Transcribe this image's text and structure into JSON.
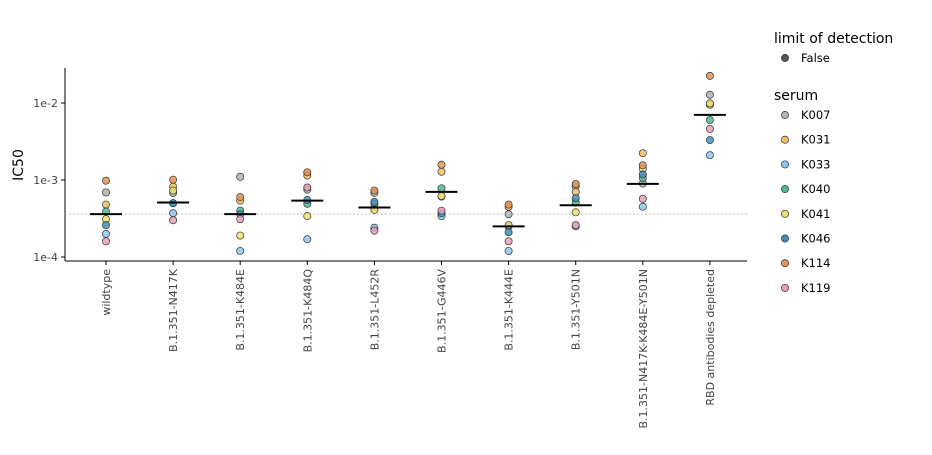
{
  "chart_data": {
    "type": "scatter",
    "title": "",
    "xlabel": "",
    "ylabel": "IC50",
    "y_scale": "log",
    "ylim": [
      9e-05,
      0.03
    ],
    "y_ticks": [
      {
        "value": 0.0001,
        "label": "1e-4"
      },
      {
        "value": 0.001,
        "label": "1e-3"
      },
      {
        "value": 0.01,
        "label": "1e-2"
      }
    ],
    "categories": [
      "wildtype",
      "B.1.351-N417K",
      "B.1.351-K484E",
      "B.1.351-K484Q",
      "B.1.351-L452R",
      "B.1.351-G446V",
      "B.1.351-K444E",
      "B.1.351-Y501N",
      "B.1.351-N417K-K484E-Y501N",
      "RBD antibodies depleted"
    ],
    "limit_of_detection_line": 0.00036,
    "medians": [
      0.00036,
      0.00051,
      0.00036,
      0.00054,
      0.00044,
      0.0007,
      0.00025,
      0.00047,
      0.00089,
      0.007
    ],
    "legend_limit": {
      "title": "limit of detection",
      "entries": [
        {
          "label": "False",
          "color": "#555555"
        }
      ]
    },
    "series": [
      {
        "name": "K007",
        "color": "#b3b3b3",
        "values": [
          0.00069,
          0.00068,
          0.0011,
          0.00075,
          0.00068,
          0.00061,
          0.00036,
          0.00083,
          0.0009,
          0.0128
        ]
      },
      {
        "name": "K031",
        "color": "#f0c060",
        "values": [
          0.00048,
          0.00082,
          0.00054,
          0.00114,
          0.00049,
          0.00128,
          0.00045,
          0.0007,
          0.00223,
          0.0095
        ]
      },
      {
        "name": "K033",
        "color": "#8ec8ea",
        "values": [
          0.0002,
          0.00037,
          0.00012,
          0.00017,
          0.00024,
          0.00034,
          0.00012,
          0.00025,
          0.00045,
          0.0021
        ]
      },
      {
        "name": "K040",
        "color": "#50b890",
        "values": [
          0.00039,
          0.0005,
          0.0004,
          0.00049,
          0.00044,
          0.00078,
          0.00025,
          0.00051,
          0.00106,
          0.006
        ]
      },
      {
        "name": "K041",
        "color": "#f0e070",
        "values": [
          0.00031,
          0.00073,
          0.00019,
          0.00034,
          0.00041,
          0.00062,
          0.00026,
          0.00038,
          0.0014,
          0.0099
        ]
      },
      {
        "name": "K046",
        "color": "#3f8fc0",
        "values": [
          0.00026,
          0.0005,
          0.00036,
          0.00055,
          0.00052,
          0.00037,
          0.00021,
          0.00058,
          0.00118,
          0.0033
        ]
      },
      {
        "name": "K114",
        "color": "#e89050",
        "values": [
          0.00098,
          0.00101,
          0.0006,
          0.00126,
          0.00073,
          0.00158,
          0.00048,
          0.00089,
          0.00155,
          0.0225
        ]
      },
      {
        "name": "K119",
        "color": "#e8a0c0",
        "values": [
          0.00016,
          0.0003,
          0.00031,
          0.0008,
          0.00022,
          0.0004,
          0.00016,
          0.00026,
          0.00057,
          0.0046
        ]
      }
    ]
  }
}
